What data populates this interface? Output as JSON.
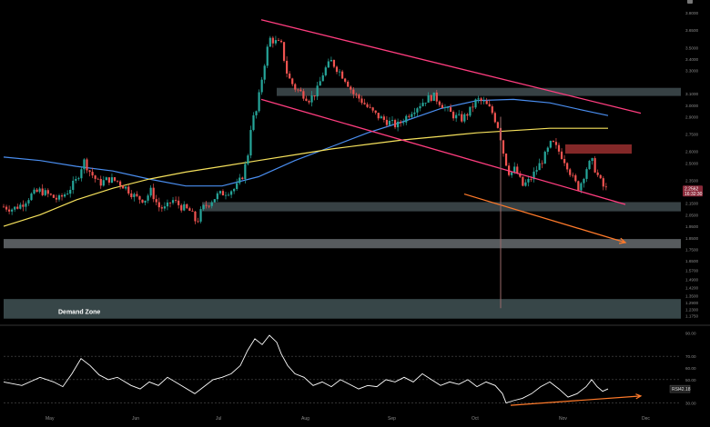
{
  "chart_data": [
    {
      "type": "candlestick",
      "title": "",
      "x_months": [
        "May",
        "Jun",
        "Jul",
        "Aug",
        "Sep",
        "Oct",
        "Nov",
        "Dec"
      ],
      "y_ticks": [
        "3.8000",
        "3.6500",
        "3.5000",
        "3.4000",
        "3.3000",
        "3.1000",
        "3.0000",
        "2.9000",
        "2.7500",
        "2.6000",
        "2.5000",
        "2.3500",
        "2.2500",
        "2.1500",
        "2.0500",
        "1.9500",
        "1.8500",
        "1.7500",
        "1.6500",
        "1.5700",
        "1.4900",
        "1.4200",
        "1.3500",
        "1.2900",
        "1.2300",
        "1.1750"
      ],
      "ylim": [
        1.14,
        3.88
      ],
      "last_price_label": "2.2562",
      "last_price_timer": "16:32:30",
      "last_price_value": 2.256,
      "candle_close_path": [
        [
          0,
          2.12
        ],
        [
          10,
          2.1
        ],
        [
          20,
          2.14
        ],
        [
          30,
          2.22
        ],
        [
          40,
          2.26
        ],
        [
          50,
          2.22
        ],
        [
          60,
          2.18
        ],
        [
          70,
          2.25
        ],
        [
          80,
          2.35
        ],
        [
          88,
          2.52
        ],
        [
          95,
          2.42
        ],
        [
          105,
          2.32
        ],
        [
          115,
          2.36
        ],
        [
          125,
          2.34
        ],
        [
          135,
          2.28
        ],
        [
          145,
          2.2
        ],
        [
          155,
          2.18
        ],
        [
          162,
          2.26
        ],
        [
          170,
          2.12
        ],
        [
          178,
          2.1
        ],
        [
          185,
          2.18
        ],
        [
          195,
          2.12
        ],
        [
          205,
          2.08
        ],
        [
          212,
          1.98
        ],
        [
          218,
          2.1
        ],
        [
          225,
          2.15
        ],
        [
          235,
          2.22
        ],
        [
          245,
          2.25
        ],
        [
          255,
          2.28
        ],
        [
          262,
          2.38
        ],
        [
          268,
          2.55
        ],
        [
          272,
          2.85
        ],
        [
          278,
          2.95
        ],
        [
          285,
          3.3
        ],
        [
          292,
          3.58
        ],
        [
          298,
          3.55
        ],
        [
          305,
          3.52
        ],
        [
          312,
          3.25
        ],
        [
          320,
          3.15
        ],
        [
          328,
          3.1
        ],
        [
          336,
          3.05
        ],
        [
          344,
          3.12
        ],
        [
          352,
          3.3
        ],
        [
          360,
          3.38
        ],
        [
          368,
          3.3
        ],
        [
          376,
          3.22
        ],
        [
          384,
          3.1
        ],
        [
          392,
          3.05
        ],
        [
          400,
          2.98
        ],
        [
          408,
          2.92
        ],
        [
          416,
          2.88
        ],
        [
          424,
          2.85
        ],
        [
          432,
          2.82
        ],
        [
          440,
          2.88
        ],
        [
          448,
          2.95
        ],
        [
          456,
          3.0
        ],
        [
          464,
          3.05
        ],
        [
          472,
          3.08
        ],
        [
          480,
          3.02
        ],
        [
          488,
          2.95
        ],
        [
          496,
          2.9
        ],
        [
          504,
          2.88
        ],
        [
          512,
          2.95
        ],
        [
          520,
          3.05
        ],
        [
          528,
          3.02
        ],
        [
          536,
          2.95
        ],
        [
          544,
          2.8
        ],
        [
          550,
          2.55
        ],
        [
          556,
          2.4
        ],
        [
          562,
          2.45
        ],
        [
          570,
          2.3
        ],
        [
          578,
          2.35
        ],
        [
          586,
          2.45
        ],
        [
          594,
          2.55
        ],
        [
          602,
          2.68
        ],
        [
          610,
          2.6
        ],
        [
          618,
          2.5
        ],
        [
          626,
          2.35
        ],
        [
          632,
          2.28
        ],
        [
          640,
          2.45
        ],
        [
          646,
          2.52
        ],
        [
          652,
          2.4
        ],
        [
          658,
          2.3
        ],
        [
          664,
          2.256
        ]
      ],
      "series": [
        {
          "name": "",
          "color": "#4a8ef0",
          "points": [
            [
              0,
              2.55
            ],
            [
              40,
              2.52
            ],
            [
              80,
              2.47
            ],
            [
              120,
              2.43
            ],
            [
              160,
              2.36
            ],
            [
              200,
              2.3
            ],
            [
              240,
              2.3
            ],
            [
              280,
              2.38
            ],
            [
              320,
              2.52
            ],
            [
              360,
              2.64
            ],
            [
              400,
              2.76
            ],
            [
              440,
              2.86
            ],
            [
              480,
              2.97
            ],
            [
              520,
              3.04
            ],
            [
              560,
              3.05
            ],
            [
              600,
              3.02
            ],
            [
              640,
              2.95
            ],
            [
              664,
              2.91
            ]
          ]
        },
        {
          "name": "",
          "color": "#f5e15c",
          "points": [
            [
              0,
              1.95
            ],
            [
              40,
              2.05
            ],
            [
              80,
              2.18
            ],
            [
              120,
              2.28
            ],
            [
              160,
              2.36
            ],
            [
              200,
              2.42
            ],
            [
              240,
              2.47
            ],
            [
              280,
              2.52
            ],
            [
              320,
              2.57
            ],
            [
              360,
              2.62
            ],
            [
              400,
              2.66
            ],
            [
              440,
              2.7
            ],
            [
              480,
              2.73
            ],
            [
              520,
              2.76
            ],
            [
              560,
              2.78
            ],
            [
              600,
              2.8
            ],
            [
              640,
              2.8
            ],
            [
              664,
              2.8
            ]
          ]
        }
      ],
      "trendlines": [
        {
          "color": "#ff3d7f",
          "points": [
            [
              283,
              3.74
            ],
            [
              700,
              2.93
            ]
          ]
        },
        {
          "color": "#ff3d7f",
          "points": [
            [
              283,
              3.05
            ],
            [
              683,
              2.14
            ]
          ]
        },
        {
          "color": "#ff7a2a",
          "arrow": true,
          "points": [
            [
              506,
              2.23
            ],
            [
              683,
              1.81
            ]
          ]
        }
      ],
      "zones": [
        {
          "color": "#3a4548",
          "y": [
            3.08,
            3.15
          ],
          "x_from": 300
        },
        {
          "color": "#3a4548",
          "y": [
            2.08,
            2.16
          ],
          "x_from": 218
        },
        {
          "color": "#5c6063",
          "y": [
            1.76,
            1.84
          ],
          "x_from": 0
        },
        {
          "color": "#3a4a4c",
          "y": [
            1.15,
            1.32
          ],
          "x_from": 0
        },
        {
          "color": "#8a2a2a",
          "y": [
            2.58,
            2.66
          ],
          "x_from": 617,
          "x_to": 690
        }
      ],
      "annotations": [
        {
          "text": "Demand Zone",
          "color": "#ffffff"
        }
      ]
    },
    {
      "type": "line",
      "title": "",
      "indicator": "RSI",
      "value_label": "42.18",
      "y_ticks": [
        "90.00",
        "70.00",
        "60.00",
        "50.00",
        "30.00"
      ],
      "ylim": [
        25,
        95
      ],
      "bands": [
        70,
        50,
        30
      ],
      "color": "#ffffff",
      "points": [
        [
          0,
          48
        ],
        [
          20,
          45
        ],
        [
          40,
          52
        ],
        [
          55,
          48
        ],
        [
          65,
          44
        ],
        [
          75,
          55
        ],
        [
          85,
          68
        ],
        [
          95,
          62
        ],
        [
          105,
          54
        ],
        [
          115,
          50
        ],
        [
          125,
          52
        ],
        [
          140,
          45
        ],
        [
          150,
          42
        ],
        [
          160,
          48
        ],
        [
          170,
          45
        ],
        [
          180,
          52
        ],
        [
          195,
          45
        ],
        [
          210,
          38
        ],
        [
          220,
          44
        ],
        [
          230,
          50
        ],
        [
          240,
          52
        ],
        [
          250,
          55
        ],
        [
          260,
          62
        ],
        [
          268,
          75
        ],
        [
          276,
          85
        ],
        [
          284,
          80
        ],
        [
          292,
          88
        ],
        [
          300,
          82
        ],
        [
          305,
          72
        ],
        [
          312,
          62
        ],
        [
          320,
          55
        ],
        [
          330,
          52
        ],
        [
          340,
          45
        ],
        [
          350,
          48
        ],
        [
          360,
          44
        ],
        [
          370,
          50
        ],
        [
          380,
          46
        ],
        [
          390,
          42
        ],
        [
          400,
          45
        ],
        [
          410,
          44
        ],
        [
          420,
          50
        ],
        [
          430,
          48
        ],
        [
          440,
          52
        ],
        [
          450,
          48
        ],
        [
          460,
          55
        ],
        [
          470,
          50
        ],
        [
          480,
          45
        ],
        [
          490,
          48
        ],
        [
          500,
          46
        ],
        [
          510,
          50
        ],
        [
          520,
          44
        ],
        [
          530,
          48
        ],
        [
          540,
          45
        ],
        [
          548,
          38
        ],
        [
          552,
          30
        ],
        [
          560,
          32
        ],
        [
          570,
          34
        ],
        [
          580,
          38
        ],
        [
          590,
          44
        ],
        [
          600,
          48
        ],
        [
          610,
          42
        ],
        [
          620,
          35
        ],
        [
          630,
          38
        ],
        [
          640,
          44
        ],
        [
          646,
          50
        ],
        [
          652,
          44
        ],
        [
          658,
          40
        ],
        [
          664,
          42
        ]
      ],
      "divergence_arrow": {
        "color": "#ff7a2a",
        "points": [
          [
            557,
            28
          ],
          [
            700,
            36
          ]
        ]
      }
    }
  ]
}
